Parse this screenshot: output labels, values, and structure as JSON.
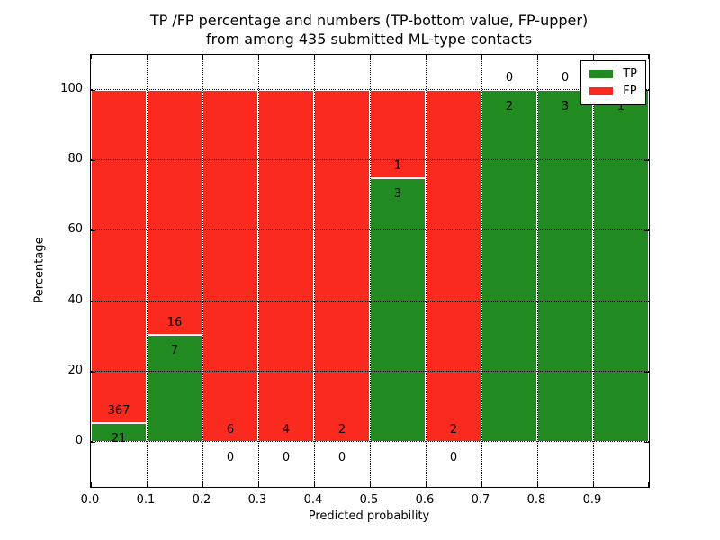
{
  "chart_data": {
    "type": "bar",
    "stacked": true,
    "title_line1": "TP /FP percentage and numbers (TP-bottom value, FP-upper)",
    "title_line2": "from among 435 submitted ML-type contacts",
    "xlabel": "Predicted probability",
    "ylabel": "Percentage",
    "x_tick_labels": [
      "0.0",
      "0.1",
      "0.2",
      "0.3",
      "0.4",
      "0.5",
      "0.6",
      "0.7",
      "0.8",
      "0.9"
    ],
    "y_ticks": [
      0,
      20,
      40,
      60,
      80,
      100
    ],
    "xlim": [
      0.0,
      1.0
    ],
    "ylim": [
      -12.8,
      110
    ],
    "bin_width": 0.1,
    "grid": "dotted",
    "legend_position": "upper right",
    "series": [
      {
        "name": "TP",
        "color": "#218A21",
        "values": [
          21,
          7,
          0,
          0,
          0,
          3,
          0,
          2,
          3,
          1
        ]
      },
      {
        "name": "FP",
        "color": "#FA2A1E",
        "values": [
          367,
          16,
          6,
          4,
          2,
          1,
          2,
          0,
          0,
          0
        ]
      }
    ]
  }
}
